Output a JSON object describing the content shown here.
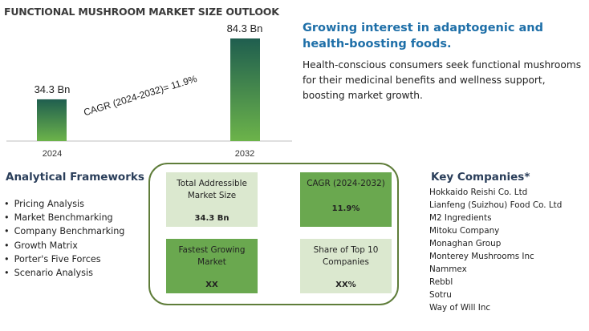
{
  "header": {
    "title": "FUNCTIONAL MUSHROOM MARKET SIZE OUTLOOK"
  },
  "chart_data": {
    "type": "bar",
    "categories": [
      "2024",
      "2032"
    ],
    "values": [
      34.3,
      84.3
    ],
    "value_labels": [
      "34.3 Bn",
      "84.3 Bn"
    ],
    "annotation": "CAGR (2024-2032)=  11.9%",
    "colors": {
      "bar_top": "#1f5e4f",
      "bar_bottom": "#6cb34a",
      "axis": "#bfbfbf"
    }
  },
  "insight": {
    "headline": "Growing interest in adaptogenic and health-boosting foods.",
    "description": "Health-conscious consumers seek functional mushrooms for their medicinal benefits and wellness support, boosting market growth."
  },
  "frameworks": {
    "title": "Analytical Frameworks",
    "items": [
      "Pricing Analysis",
      "Market Benchmarking",
      "Company Benchmarking",
      "Growth Matrix",
      "Porter's Five Forces",
      "Scenario Analysis"
    ]
  },
  "metrics": {
    "total_market": {
      "label": "Total Addressible Market Size",
      "value": "34.3 Bn"
    },
    "cagr": {
      "label": "CAGR (2024-2032)",
      "value": "11.9%"
    },
    "fastest": {
      "label": "Fastest Growing Market",
      "value": "XX"
    },
    "share": {
      "label": "Share of Top 10 Companies",
      "value": "XX%"
    },
    "colors": {
      "light": "#dbe8cf",
      "dark": "#6aa84f",
      "frame": "#5f7d3a"
    }
  },
  "companies": {
    "title": "Key Companies*",
    "items": [
      "Hokkaido Reishi Co. Ltd",
      "Lianfeng (Suizhou) Food Co. Ltd",
      "M2 Ingredients",
      "Mitoku Company",
      "Monaghan Group",
      "Monterey Mushrooms Inc",
      "Nammex",
      "Rebbl",
      "Sotru",
      "Way of Will Inc"
    ]
  }
}
